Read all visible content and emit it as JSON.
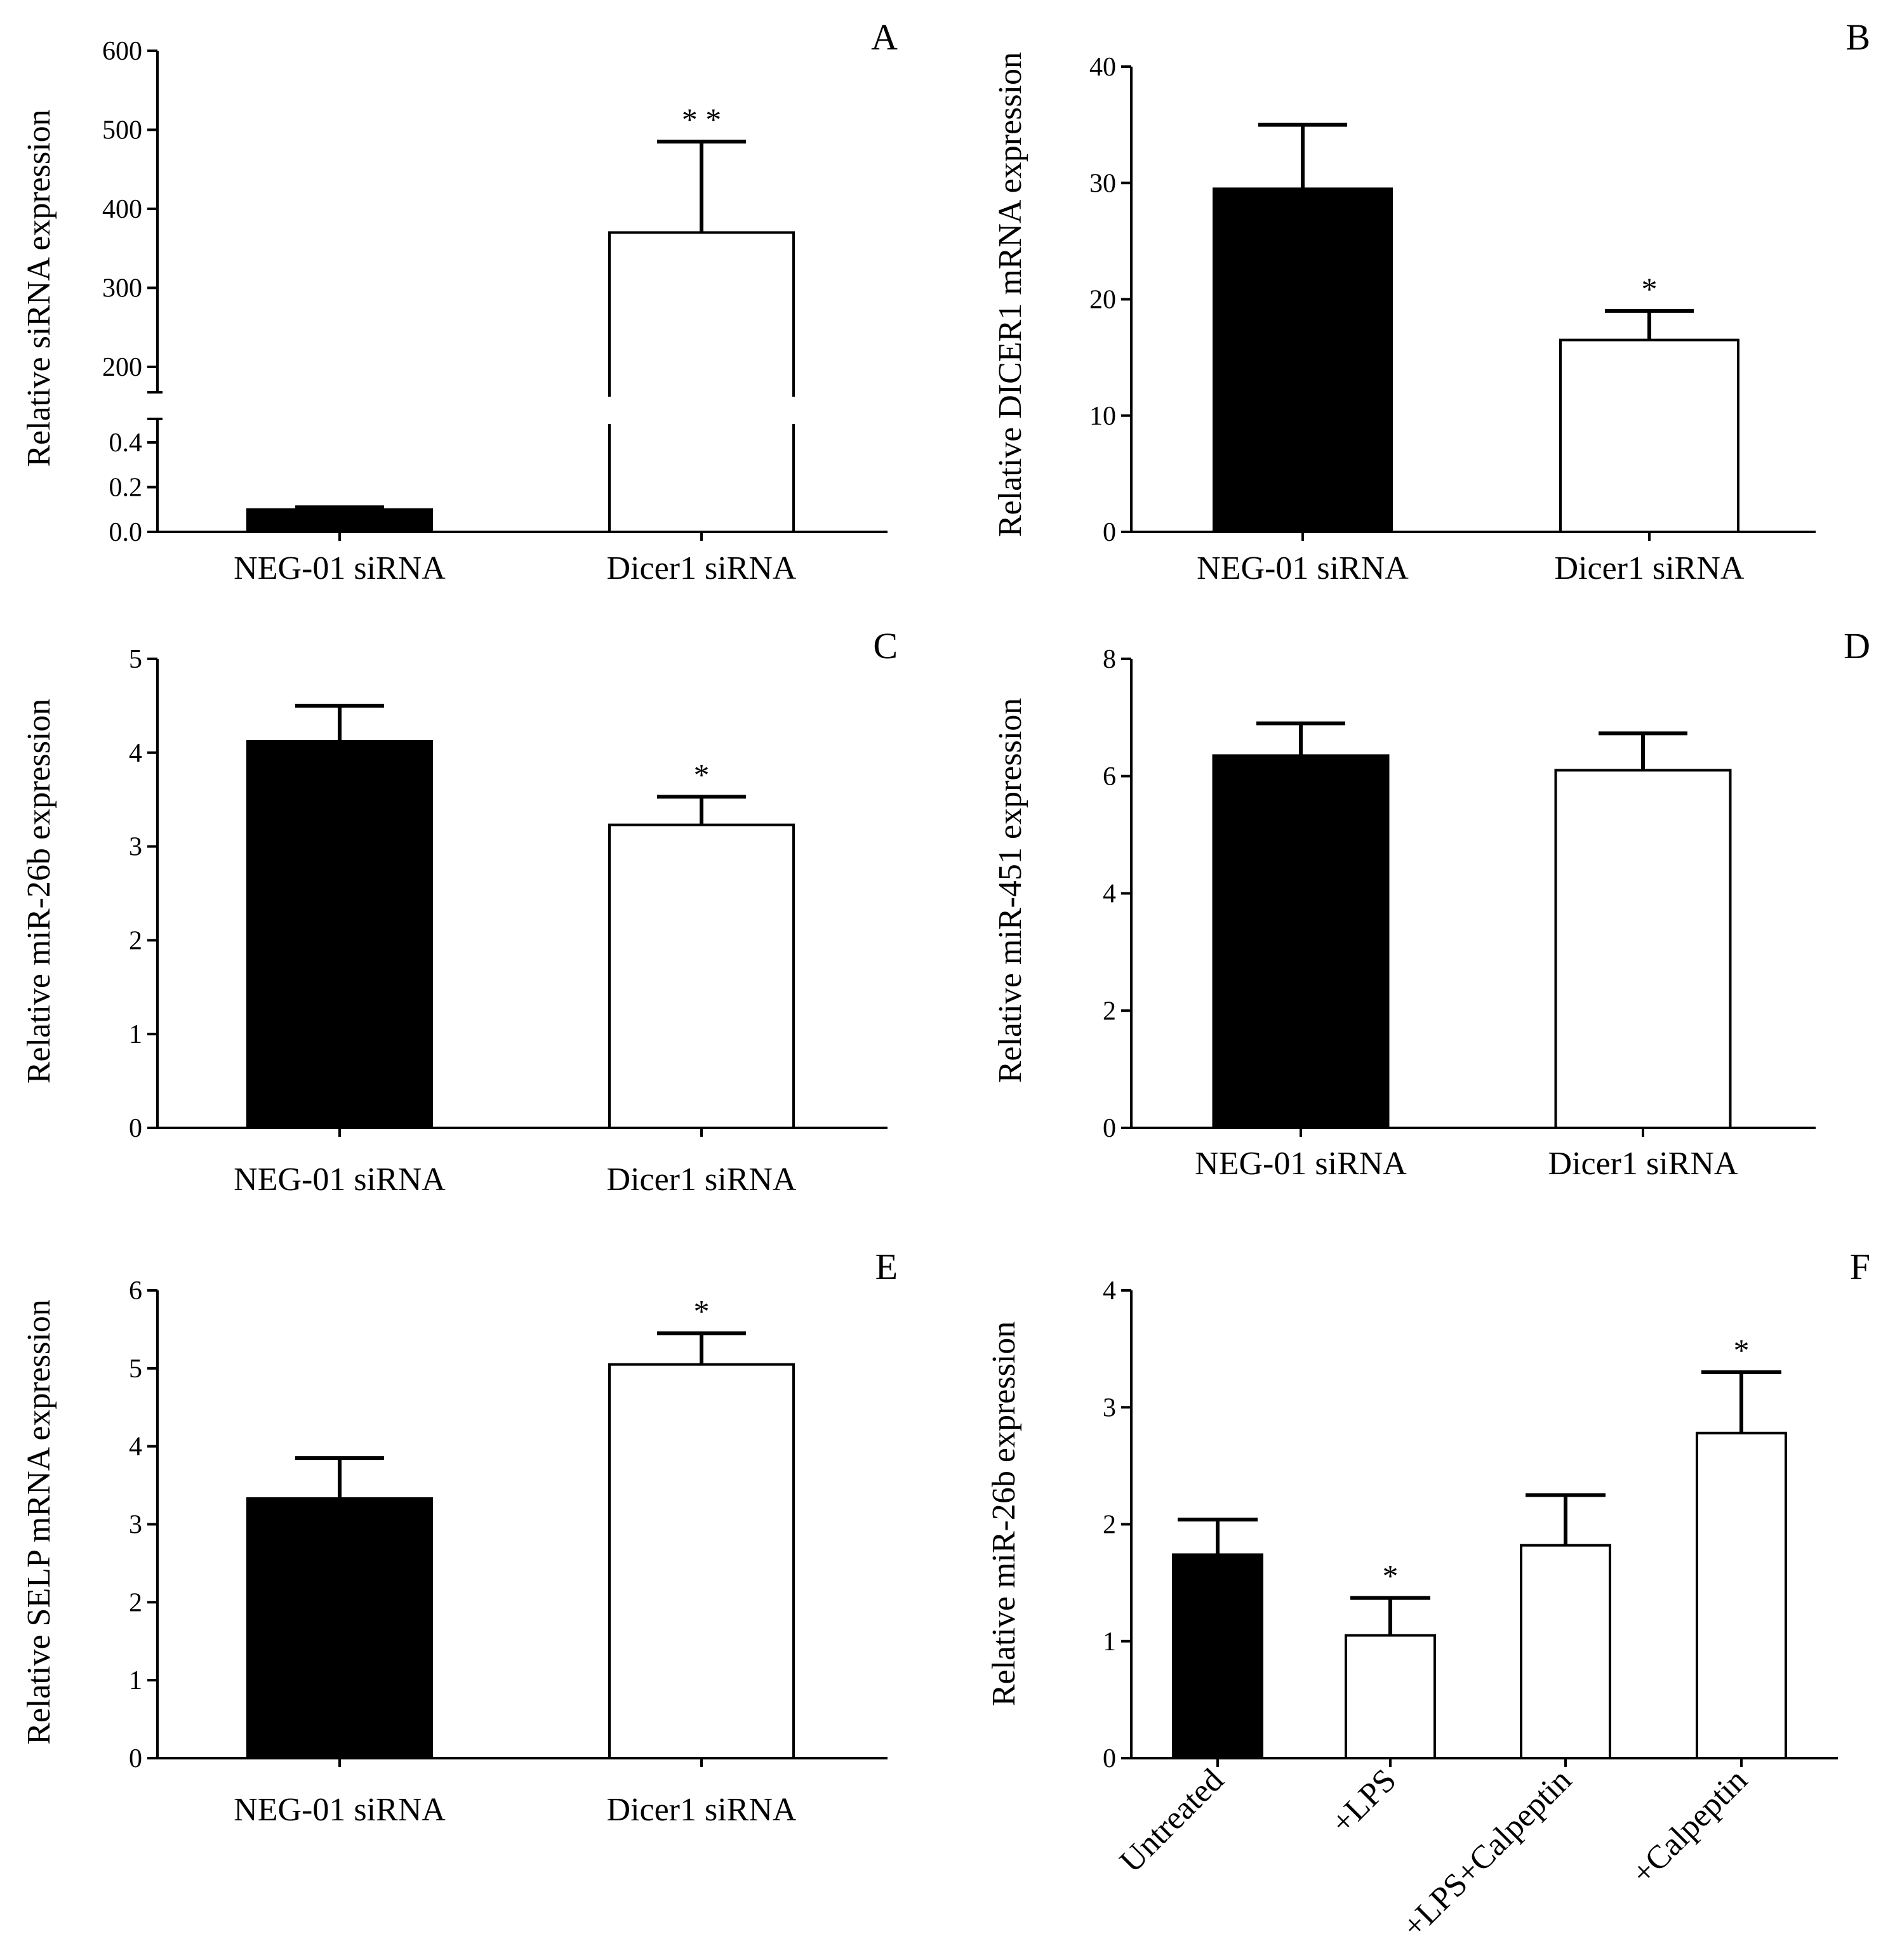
{
  "colors": {
    "filled": "#000000",
    "open": "#ffffff",
    "stroke": "#000000"
  },
  "chart_data": [
    {
      "panel": "A",
      "type": "bar",
      "ylabel": "Relative siRNA expression",
      "categories": [
        "NEG-01 siRNA",
        "Dicer1 siRNA"
      ],
      "values": [
        0.1,
        370
      ],
      "errors": [
        0.01,
        115
      ],
      "styles": [
        "filled",
        "open"
      ],
      "significance": [
        "",
        "* *"
      ],
      "axis_break": true,
      "lower_range": [
        0,
        0.5
      ],
      "lower_ticks": [
        "0.0",
        "0.2",
        "0.4"
      ],
      "upper_range": [
        200,
        600
      ],
      "upper_ticks": [
        "200",
        "300",
        "400",
        "500",
        "600"
      ]
    },
    {
      "panel": "B",
      "type": "bar",
      "ylabel": "Relative DICER1 mRNA expression",
      "categories": [
        "NEG-01 siRNA",
        "Dicer1 siRNA"
      ],
      "values": [
        29.5,
        16.5
      ],
      "errors": [
        5.5,
        2.5
      ],
      "styles": [
        "filled",
        "open"
      ],
      "significance": [
        "",
        "*"
      ],
      "ylim": [
        0,
        40
      ],
      "yticks": [
        0,
        10,
        20,
        30,
        40
      ]
    },
    {
      "panel": "C",
      "type": "bar",
      "ylabel": "Relative miR-26b expression",
      "categories": [
        "NEG-01 siRNA",
        "Dicer1 siRNA"
      ],
      "values": [
        4.12,
        3.23
      ],
      "errors": [
        0.38,
        0.3
      ],
      "styles": [
        "filled",
        "open"
      ],
      "significance": [
        "",
        "*"
      ],
      "ylim": [
        0,
        5
      ],
      "yticks": [
        0,
        1,
        2,
        3,
        4,
        5
      ]
    },
    {
      "panel": "D",
      "type": "bar",
      "ylabel": "Relative miR-451 expression",
      "categories": [
        "NEG-01 siRNA",
        "Dicer1 siRNA"
      ],
      "values": [
        6.35,
        6.1
      ],
      "errors": [
        0.55,
        0.63
      ],
      "styles": [
        "filled",
        "open"
      ],
      "significance": [
        "",
        ""
      ],
      "ylim": [
        0,
        8
      ],
      "yticks": [
        0,
        2,
        4,
        6,
        8
      ]
    },
    {
      "panel": "E",
      "type": "bar",
      "ylabel": "Relative SELP mRNA expression",
      "categories": [
        "NEG-01 siRNA",
        "Dicer1 siRNA"
      ],
      "values": [
        3.33,
        5.05
      ],
      "errors": [
        0.52,
        0.4
      ],
      "styles": [
        "filled",
        "open"
      ],
      "significance": [
        "",
        "*"
      ],
      "ylim": [
        0,
        6
      ],
      "yticks": [
        0,
        1,
        2,
        3,
        4,
        5,
        6
      ]
    },
    {
      "panel": "F",
      "type": "bar",
      "ylabel": "Relative miR-26b expression",
      "categories": [
        "Untreated",
        "+LPS",
        "+LPS+Calpeptin",
        "+Calpeptin"
      ],
      "values": [
        1.74,
        1.05,
        1.82,
        2.78
      ],
      "errors": [
        0.3,
        0.32,
        0.43,
        0.52
      ],
      "styles": [
        "filled",
        "open",
        "open",
        "open"
      ],
      "significance": [
        "",
        "*",
        "",
        "*"
      ],
      "ylim": [
        0,
        4
      ],
      "yticks": [
        0,
        1,
        2,
        3,
        4
      ],
      "rotated_labels": true
    }
  ]
}
